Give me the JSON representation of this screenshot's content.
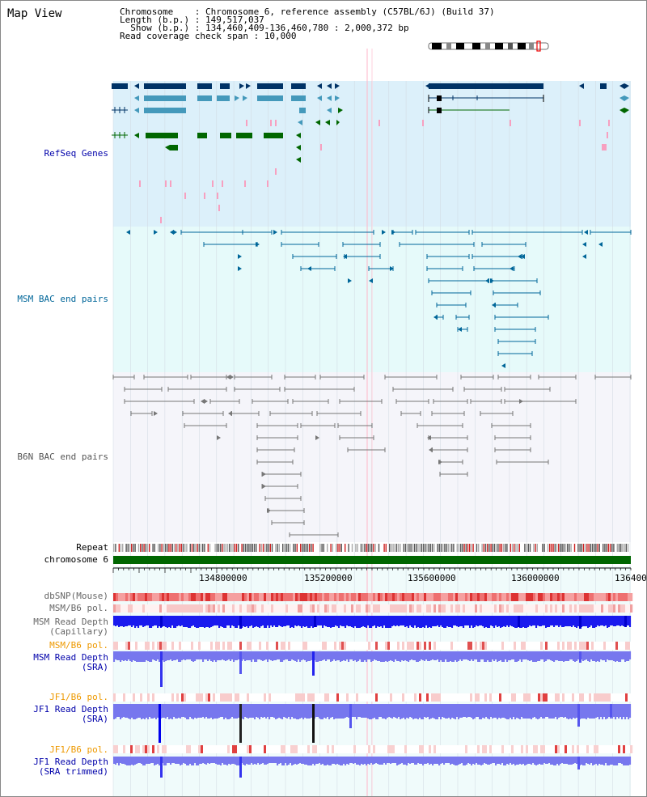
{
  "title": "Map View",
  "info": {
    "line1": "Chromosome    : Chromosome 6, reference assembly (C57BL/6J) (Build 37)",
    "line2": "Length (b.p.) : 149,517,037",
    "line3": "  Show (b.p.) : 134,460,409-136,460,780 : 2,000,372 bp",
    "line4": "Read coverage check span : 10,000"
  },
  "tracks": {
    "refseq": "RefSeq Genes",
    "msm_bac": "MSM BAC end pairs",
    "b6n_bac": "B6N BAC end pairs",
    "repeat": "Repeat",
    "chromosome": "chromosome 6",
    "dbsnp": "dbSNP(Mouse)",
    "msm_b6_pol_1": "MSM/B6 pol.",
    "msm_read_depth_cap": "MSM Read Depth\n(Capillary)",
    "msm_b6_pol_2": "MSM/B6 pol.",
    "msm_read_depth_sra": "MSM Read Depth\n(SRA)",
    "jf1_b6_pol_1": "JF1/B6 pol.",
    "jf1_read_depth_sra": "JF1 Read Depth\n(SRA)",
    "jf1_b6_pol_2": "JF1/B6 pol.",
    "jf1_read_depth_trim": "JF1 Read Depth\n(SRA trimmed)"
  },
  "ticks": [
    "134800000",
    "135200000",
    "135600000",
    "136000000",
    "136400"
  ],
  "colors": {
    "refseq_bg": "#dcf0fa",
    "msm_bg": "#e6fafa",
    "b6n_bg": "#f5f5fa",
    "gene_dark": "#003366",
    "gene_mid": "#4499bb",
    "gene_green": "#006600",
    "msm_pair": "#006699",
    "b6n_pair": "#777777",
    "depth_blue": "#1a1aee",
    "depth_light": "#7777ee",
    "chrom_green": "#006600"
  }
}
